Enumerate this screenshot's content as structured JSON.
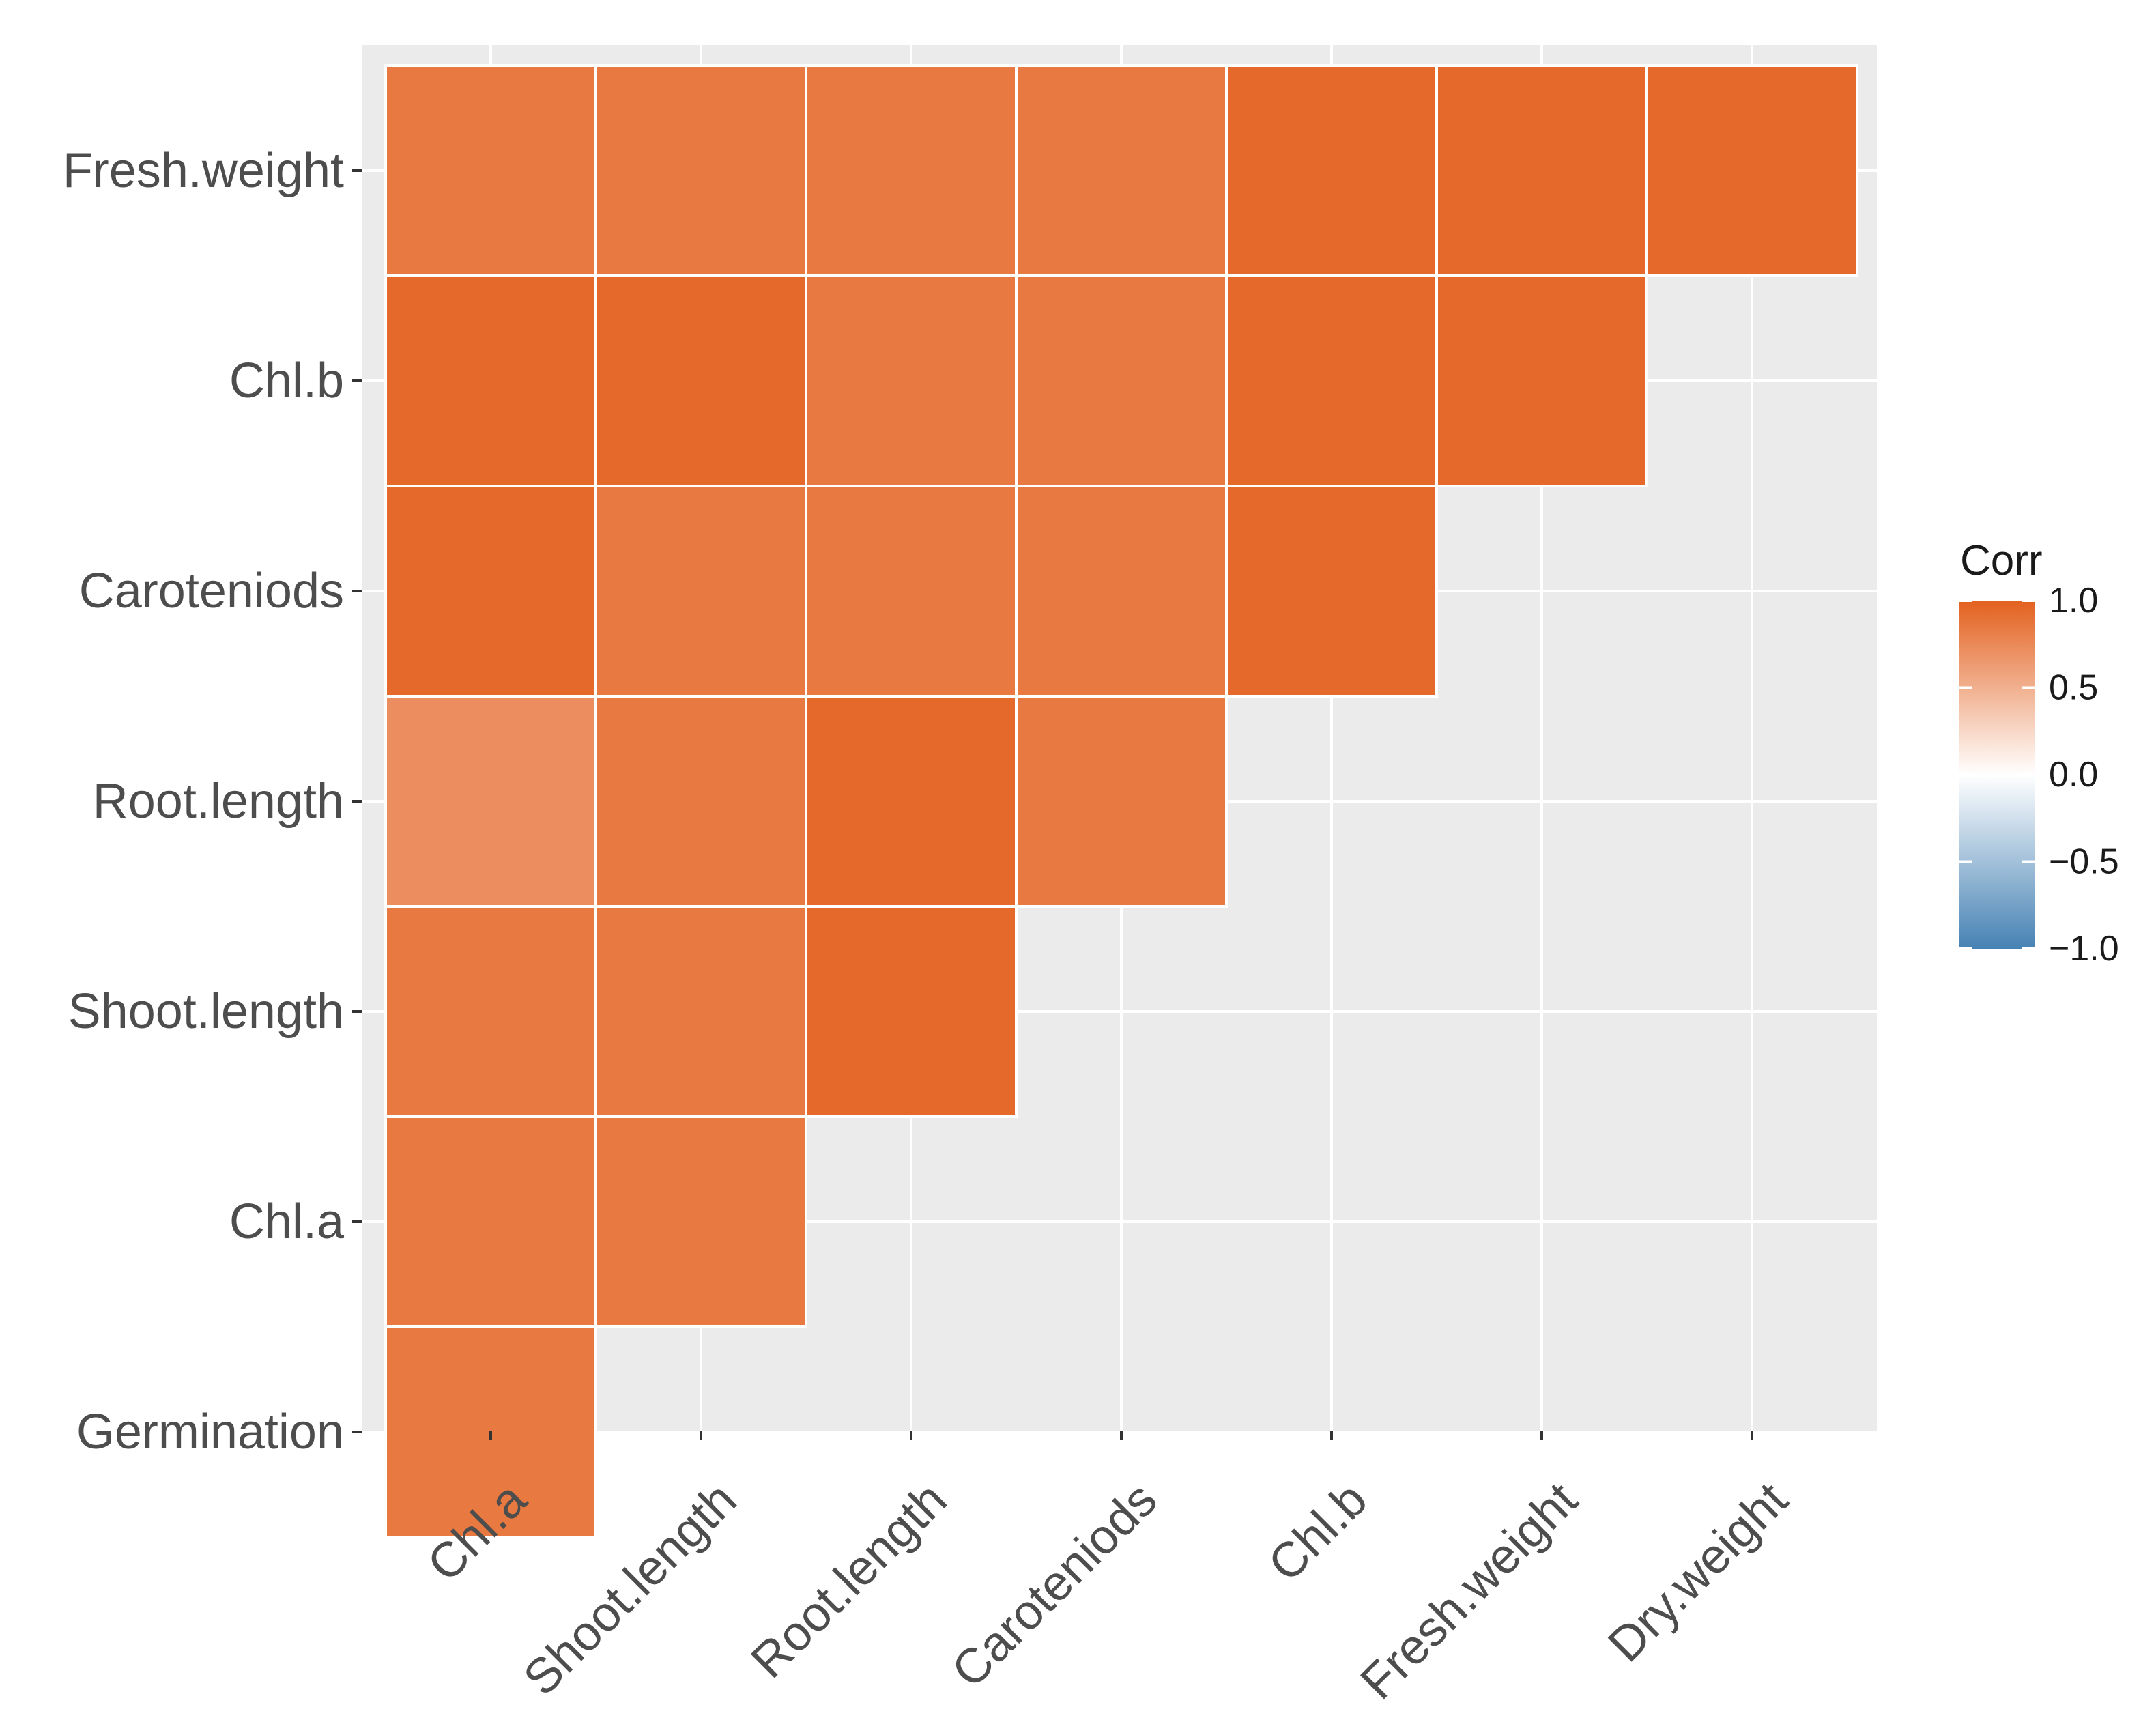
{
  "chart_data": {
    "type": "heatmap",
    "title": "",
    "xlabel": "",
    "ylabel": "",
    "x_categories": [
      "Chl.a",
      "Shoot.length",
      "Root.length",
      "Caroteniods",
      "Chl.b",
      "Fresh.weight",
      "Dry.weight"
    ],
    "y_categories": [
      "Germination",
      "Chl.a",
      "Shoot.length",
      "Root.length",
      "Caroteniods",
      "Chl.b",
      "Fresh.weight"
    ],
    "grid": true,
    "matrix": [
      [
        0.85,
        null,
        null,
        null,
        null,
        null,
        null
      ],
      [
        0.85,
        0.85,
        null,
        null,
        null,
        null,
        null
      ],
      [
        0.85,
        0.85,
        0.95,
        null,
        null,
        null,
        null
      ],
      [
        0.72,
        0.85,
        0.95,
        0.85,
        null,
        null,
        null
      ],
      [
        0.95,
        0.85,
        0.85,
        0.85,
        0.95,
        null,
        null
      ],
      [
        0.95,
        0.95,
        0.85,
        0.85,
        0.95,
        0.95,
        null
      ],
      [
        0.85,
        0.85,
        0.85,
        0.85,
        0.95,
        0.95,
        0.95
      ]
    ],
    "legend": {
      "title": "Corr",
      "position": "right",
      "range": [
        -1.0,
        1.0
      ],
      "ticks": [
        "1.0",
        "0.5",
        "0.0",
        "−0.5",
        "−1.0"
      ],
      "tick_values": [
        1.0,
        0.5,
        0.0,
        -0.5,
        -1.0
      ],
      "low_color": "#4682b4",
      "mid_color": "#ffffff",
      "high_color": "#e3611f"
    },
    "panel_color": "#ebebeb",
    "tile_border_color": "#ffffff"
  }
}
